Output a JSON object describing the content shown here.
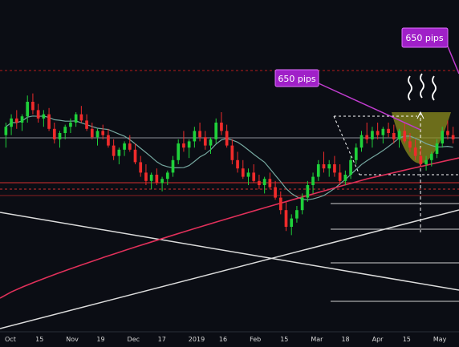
{
  "chart_data": {
    "type": "candlestick",
    "title": "",
    "xlabel": "",
    "ylabel": "",
    "x_ticks": [
      "Oct",
      "15",
      "Nov",
      "19",
      "Dec",
      "17",
      "2019",
      "16",
      "Feb",
      "15",
      "Mar",
      "18",
      "Apr",
      "15",
      "May"
    ],
    "annotations": [
      {
        "label": "650 pips"
      },
      {
        "label": "650 pips"
      }
    ],
    "series": [
      {
        "kind": "ohlc"
      },
      {
        "kind": "moving-average-fast"
      },
      {
        "kind": "moving-average-slow"
      }
    ],
    "ylim": [
      0,
      100
    ],
    "candles": [
      {
        "o": 64,
        "h": 70,
        "l": 58,
        "c": 68
      },
      {
        "o": 68,
        "h": 74,
        "l": 64,
        "c": 72
      },
      {
        "o": 72,
        "h": 76,
        "l": 67,
        "c": 70
      },
      {
        "o": 70,
        "h": 74,
        "l": 66,
        "c": 73
      },
      {
        "o": 73,
        "h": 83,
        "l": 70,
        "c": 80
      },
      {
        "o": 80,
        "h": 84,
        "l": 74,
        "c": 76
      },
      {
        "o": 76,
        "h": 79,
        "l": 70,
        "c": 72
      },
      {
        "o": 72,
        "h": 76,
        "l": 68,
        "c": 74
      },
      {
        "o": 74,
        "h": 77,
        "l": 66,
        "c": 67
      },
      {
        "o": 67,
        "h": 70,
        "l": 60,
        "c": 62
      },
      {
        "o": 62,
        "h": 66,
        "l": 58,
        "c": 65
      },
      {
        "o": 65,
        "h": 69,
        "l": 62,
        "c": 68
      },
      {
        "o": 68,
        "h": 72,
        "l": 65,
        "c": 70
      },
      {
        "o": 70,
        "h": 75,
        "l": 68,
        "c": 74
      },
      {
        "o": 74,
        "h": 78,
        "l": 70,
        "c": 71
      },
      {
        "o": 71,
        "h": 74,
        "l": 66,
        "c": 67
      },
      {
        "o": 67,
        "h": 70,
        "l": 62,
        "c": 63
      },
      {
        "o": 63,
        "h": 67,
        "l": 59,
        "c": 66
      },
      {
        "o": 66,
        "h": 69,
        "l": 62,
        "c": 64
      },
      {
        "o": 64,
        "h": 67,
        "l": 58,
        "c": 59
      },
      {
        "o": 59,
        "h": 62,
        "l": 52,
        "c": 54
      },
      {
        "o": 54,
        "h": 58,
        "l": 50,
        "c": 57
      },
      {
        "o": 57,
        "h": 61,
        "l": 54,
        "c": 60
      },
      {
        "o": 60,
        "h": 64,
        "l": 56,
        "c": 57
      },
      {
        "o": 57,
        "h": 60,
        "l": 50,
        "c": 51
      },
      {
        "o": 51,
        "h": 54,
        "l": 44,
        "c": 46
      },
      {
        "o": 46,
        "h": 50,
        "l": 40,
        "c": 42
      },
      {
        "o": 42,
        "h": 46,
        "l": 38,
        "c": 45
      },
      {
        "o": 45,
        "h": 48,
        "l": 40,
        "c": 41
      },
      {
        "o": 41,
        "h": 44,
        "l": 37,
        "c": 43
      },
      {
        "o": 43,
        "h": 47,
        "l": 40,
        "c": 46
      },
      {
        "o": 46,
        "h": 54,
        "l": 44,
        "c": 52
      },
      {
        "o": 52,
        "h": 62,
        "l": 50,
        "c": 60
      },
      {
        "o": 60,
        "h": 66,
        "l": 56,
        "c": 58
      },
      {
        "o": 58,
        "h": 62,
        "l": 53,
        "c": 61
      },
      {
        "o": 61,
        "h": 68,
        "l": 58,
        "c": 66
      },
      {
        "o": 66,
        "h": 70,
        "l": 61,
        "c": 63
      },
      {
        "o": 63,
        "h": 66,
        "l": 57,
        "c": 59
      },
      {
        "o": 59,
        "h": 63,
        "l": 55,
        "c": 62
      },
      {
        "o": 62,
        "h": 72,
        "l": 60,
        "c": 70
      },
      {
        "o": 70,
        "h": 75,
        "l": 64,
        "c": 66
      },
      {
        "o": 66,
        "h": 69,
        "l": 58,
        "c": 59
      },
      {
        "o": 59,
        "h": 62,
        "l": 50,
        "c": 52
      },
      {
        "o": 52,
        "h": 56,
        "l": 46,
        "c": 48
      },
      {
        "o": 48,
        "h": 52,
        "l": 43,
        "c": 44
      },
      {
        "o": 44,
        "h": 48,
        "l": 40,
        "c": 46
      },
      {
        "o": 46,
        "h": 50,
        "l": 41,
        "c": 42
      },
      {
        "o": 42,
        "h": 45,
        "l": 38,
        "c": 40
      },
      {
        "o": 40,
        "h": 44,
        "l": 36,
        "c": 43
      },
      {
        "o": 43,
        "h": 46,
        "l": 38,
        "c": 39
      },
      {
        "o": 39,
        "h": 42,
        "l": 33,
        "c": 34
      },
      {
        "o": 34,
        "h": 37,
        "l": 26,
        "c": 28
      },
      {
        "o": 28,
        "h": 32,
        "l": 18,
        "c": 20
      },
      {
        "o": 20,
        "h": 26,
        "l": 16,
        "c": 24
      },
      {
        "o": 24,
        "h": 30,
        "l": 22,
        "c": 28
      },
      {
        "o": 28,
        "h": 36,
        "l": 26,
        "c": 34
      },
      {
        "o": 34,
        "h": 42,
        "l": 32,
        "c": 40
      },
      {
        "o": 40,
        "h": 46,
        "l": 36,
        "c": 44
      },
      {
        "o": 44,
        "h": 52,
        "l": 42,
        "c": 50
      },
      {
        "o": 50,
        "h": 56,
        "l": 46,
        "c": 48
      },
      {
        "o": 48,
        "h": 52,
        "l": 44,
        "c": 50
      },
      {
        "o": 50,
        "h": 54,
        "l": 44,
        "c": 46
      },
      {
        "o": 46,
        "h": 50,
        "l": 40,
        "c": 42
      },
      {
        "o": 42,
        "h": 47,
        "l": 40,
        "c": 45
      },
      {
        "o": 45,
        "h": 54,
        "l": 43,
        "c": 52
      },
      {
        "o": 52,
        "h": 60,
        "l": 50,
        "c": 58
      },
      {
        "o": 58,
        "h": 66,
        "l": 56,
        "c": 64
      },
      {
        "o": 64,
        "h": 70,
        "l": 60,
        "c": 62
      },
      {
        "o": 62,
        "h": 68,
        "l": 58,
        "c": 66
      },
      {
        "o": 66,
        "h": 70,
        "l": 62,
        "c": 64
      },
      {
        "o": 64,
        "h": 68,
        "l": 60,
        "c": 67
      },
      {
        "o": 67,
        "h": 70,
        "l": 63,
        "c": 65
      },
      {
        "o": 65,
        "h": 69,
        "l": 60,
        "c": 62
      },
      {
        "o": 62,
        "h": 67,
        "l": 58,
        "c": 66
      },
      {
        "o": 66,
        "h": 70,
        "l": 60,
        "c": 61
      },
      {
        "o": 61,
        "h": 65,
        "l": 56,
        "c": 58
      },
      {
        "o": 58,
        "h": 62,
        "l": 52,
        "c": 54
      },
      {
        "o": 54,
        "h": 58,
        "l": 49,
        "c": 50
      },
      {
        "o": 50,
        "h": 54,
        "l": 47,
        "c": 52
      },
      {
        "o": 52,
        "h": 56,
        "l": 49,
        "c": 55
      },
      {
        "o": 55,
        "h": 62,
        "l": 53,
        "c": 60
      },
      {
        "o": 60,
        "h": 68,
        "l": 58,
        "c": 66
      },
      {
        "o": 66,
        "h": 71,
        "l": 62,
        "c": 64
      },
      {
        "o": 64,
        "h": 68,
        "l": 60,
        "c": 62
      }
    ]
  }
}
